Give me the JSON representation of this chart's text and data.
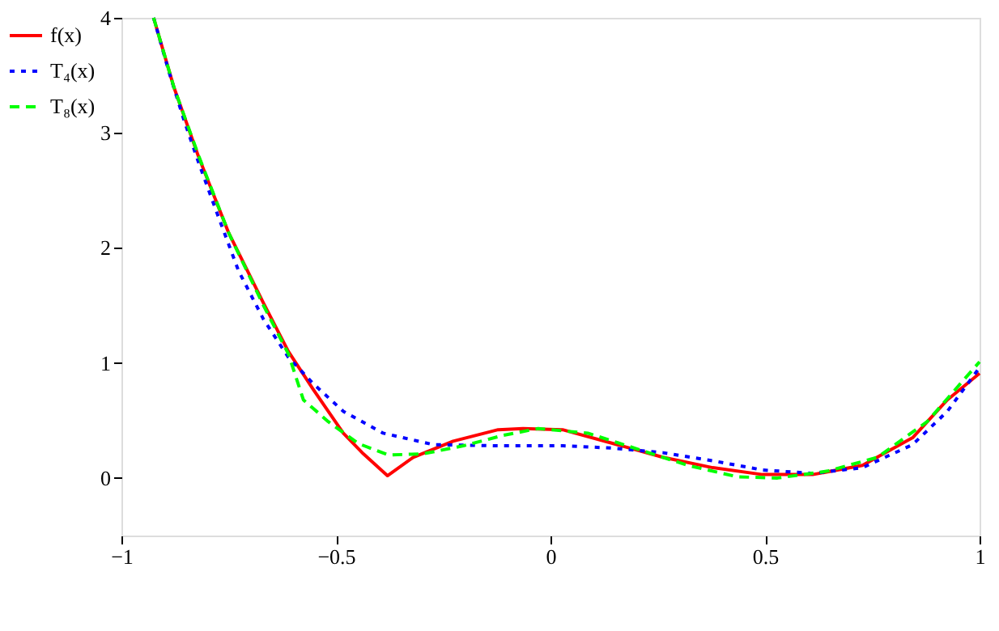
{
  "chart_data": {
    "type": "line",
    "xlim": [
      -1,
      1
    ],
    "ylim": [
      -0.5,
      4
    ],
    "xticks": [
      -1,
      -0.5,
      0,
      0.5,
      1
    ],
    "yticks": [
      0,
      1,
      2,
      3,
      4
    ],
    "grid": false,
    "legend": "left",
    "marker": "none",
    "series": [
      {
        "name": "f(x)",
        "color": "#ff0000",
        "line_style": "solid",
        "x": [
          -0.925,
          -0.878,
          -0.82,
          -0.75,
          -0.669,
          -0.611,
          -0.553,
          -0.483,
          -0.436,
          -0.38,
          -0.32,
          -0.227,
          -0.122,
          -0.064,
          0.028,
          0.146,
          0.262,
          0.378,
          0.494,
          0.611,
          0.727,
          0.844,
          0.925,
          1.0
        ],
        "values": [
          4.0,
          3.4,
          2.79,
          2.13,
          1.52,
          1.1,
          0.77,
          0.39,
          0.21,
          0.02,
          0.18,
          0.32,
          0.42,
          0.43,
          0.42,
          0.3,
          0.18,
          0.09,
          0.03,
          0.03,
          0.11,
          0.35,
          0.68,
          0.91
        ]
      },
      {
        "name": "T₄(x)",
        "color": "#0000ff",
        "line_style": "dotted",
        "x": [
          -0.925,
          -0.89,
          -0.855,
          -0.82,
          -0.774,
          -0.727,
          -0.669,
          -0.611,
          -0.553,
          -0.483,
          -0.39,
          -0.273,
          -0.122,
          0.029,
          0.146,
          0.262,
          0.378,
          0.494,
          0.611,
          0.727,
          0.844,
          0.925,
          1.0
        ],
        "values": [
          4.0,
          3.54,
          3.12,
          2.74,
          2.27,
          1.8,
          1.38,
          1.05,
          0.82,
          0.58,
          0.39,
          0.29,
          0.28,
          0.28,
          0.26,
          0.22,
          0.15,
          0.07,
          0.04,
          0.09,
          0.29,
          0.58,
          0.96
        ]
      },
      {
        "name": "T₈(x)",
        "color": "#00ff00",
        "line_style": "dashed",
        "x": [
          -0.925,
          -0.878,
          -0.82,
          -0.75,
          -0.669,
          -0.611,
          -0.576,
          -0.518,
          -0.448,
          -0.378,
          -0.297,
          -0.203,
          -0.111,
          -0.029,
          0.087,
          0.204,
          0.32,
          0.436,
          0.529,
          0.646,
          0.762,
          0.878,
          1.0
        ],
        "values": [
          4.0,
          3.4,
          2.8,
          2.13,
          1.5,
          1.08,
          0.68,
          0.49,
          0.3,
          0.2,
          0.21,
          0.28,
          0.37,
          0.43,
          0.39,
          0.25,
          0.11,
          0.01,
          0.0,
          0.06,
          0.18,
          0.49,
          1.01
        ]
      }
    ]
  }
}
